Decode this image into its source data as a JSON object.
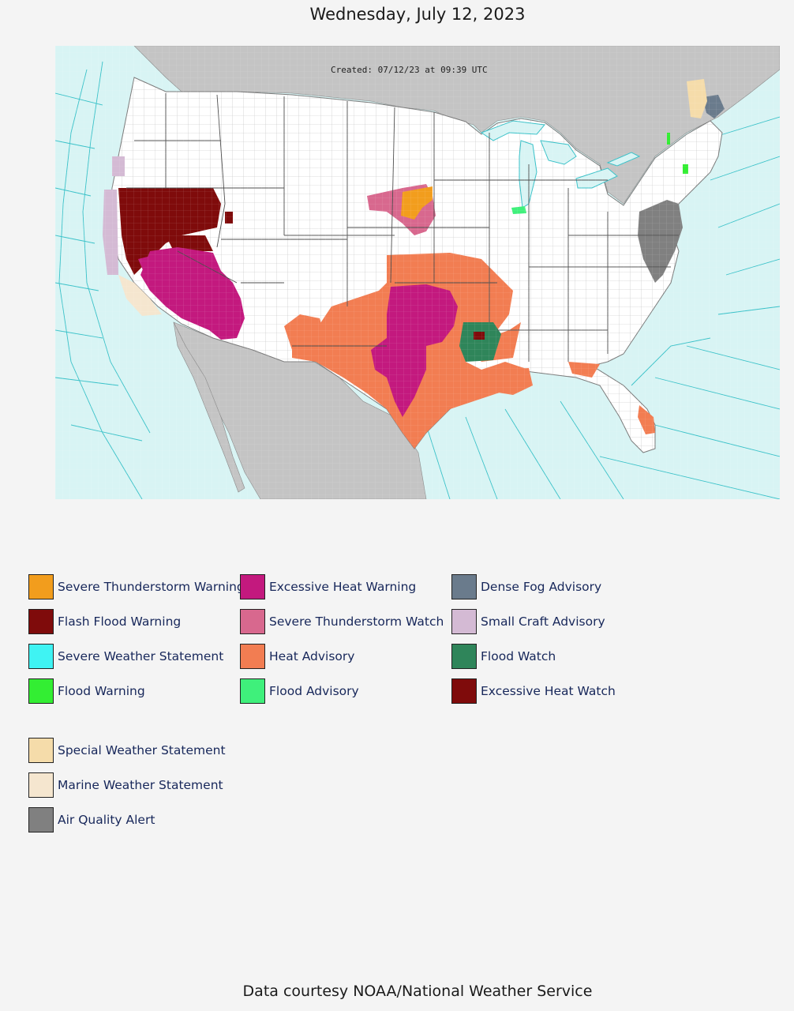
{
  "header": {
    "date": "Wednesday, July 12, 2023"
  },
  "map": {
    "created_stamp": "Created: 07/12/23 at 09:39 UTC"
  },
  "legend": {
    "items": [
      {
        "label": "Severe Thunderstorm Warning",
        "color": "#f29d1d"
      },
      {
        "label": "Flash Flood Warning",
        "color": "#7f0b0b"
      },
      {
        "label": "Severe Weather Statement",
        "color": "#3ff3f3"
      },
      {
        "label": "Flood Warning",
        "color": "#33ee33"
      },
      {
        "label": "Excessive Heat Warning",
        "color": "#c3197e"
      },
      {
        "label": "Severe Thunderstorm Watch",
        "color": "#d8688e"
      },
      {
        "label": "Heat Advisory",
        "color": "#f27d52"
      },
      {
        "label": "Flood Advisory",
        "color": "#3ff07b"
      },
      {
        "label": "Dense Fog Advisory",
        "color": "#6a7b8c"
      },
      {
        "label": "Small Craft Advisory",
        "color": "#d4bad4"
      },
      {
        "label": "Flood Watch",
        "color": "#2f855a"
      },
      {
        "label": "Excessive Heat Watch",
        "color": "#7f0b0b"
      },
      {
        "label": "Special Weather Statement",
        "color": "#f5dcaa"
      },
      {
        "label": "Marine Weather Statement",
        "color": "#f5e6cf"
      },
      {
        "label": "Air Quality Alert",
        "color": "#808080"
      }
    ]
  },
  "footer": {
    "credit": "Data courtesy NOAA/National Weather Service"
  }
}
